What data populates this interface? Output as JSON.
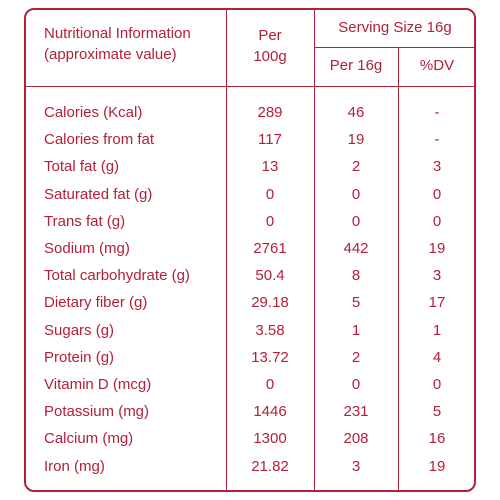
{
  "header": {
    "title_line1": "Nutritional Information",
    "title_line2": "(approximate value)",
    "per100_line1": "Per",
    "per100_line2": "100g",
    "serving_size": "Serving Size 16g",
    "per16": "Per 16g",
    "dv": "%DV"
  },
  "colors": {
    "accent": "#b2203a"
  },
  "rows": [
    {
      "name": "Calories (Kcal)",
      "per100": "289",
      "per16": "46",
      "dv": "-"
    },
    {
      "name": "Calories from fat",
      "per100": "117",
      "per16": "19",
      "dv": "-"
    },
    {
      "name": "Total fat (g)",
      "per100": "13",
      "per16": "2",
      "dv": "3"
    },
    {
      "name": "Saturated fat (g)",
      "per100": "0",
      "per16": "0",
      "dv": "0"
    },
    {
      "name": "Trans fat (g)",
      "per100": "0",
      "per16": "0",
      "dv": "0"
    },
    {
      "name": "Sodium (mg)",
      "per100": "2761",
      "per16": "442",
      "dv": "19"
    },
    {
      "name": "Total carbohydrate (g)",
      "per100": "50.4",
      "per16": "8",
      "dv": "3"
    },
    {
      "name": "Dietary fiber (g)",
      "per100": "29.18",
      "per16": "5",
      "dv": "17"
    },
    {
      "name": "Sugars (g)",
      "per100": "3.58",
      "per16": "1",
      "dv": "1"
    },
    {
      "name": "Protein (g)",
      "per100": "13.72",
      "per16": "2",
      "dv": "4"
    },
    {
      "name": "Vitamin D (mcg)",
      "per100": "0",
      "per16": "0",
      "dv": "0"
    },
    {
      "name": "Potassium (mg)",
      "per100": "1446",
      "per16": "231",
      "dv": "5"
    },
    {
      "name": "Calcium (mg)",
      "per100": "1300",
      "per16": "208",
      "dv": "16"
    },
    {
      "name": "Iron (mg)",
      "per100": "21.82",
      "per16": "3",
      "dv": "19"
    }
  ]
}
